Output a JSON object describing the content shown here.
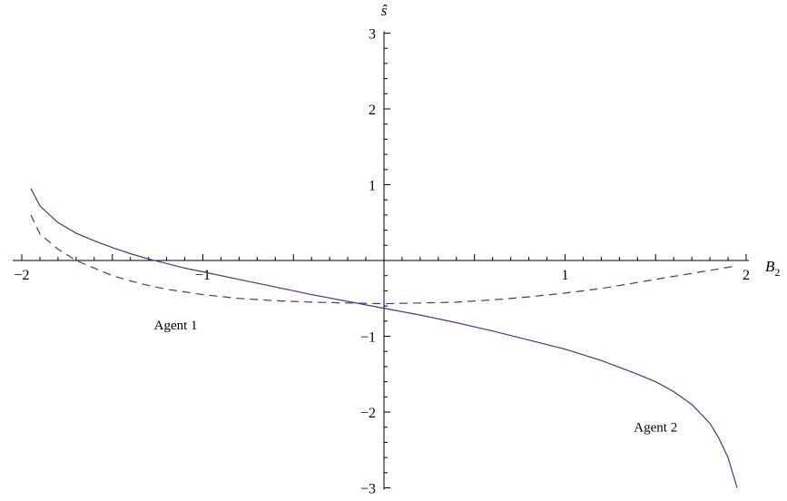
{
  "chart_data": {
    "type": "line",
    "xlabel": "B",
    "xlabel_sub": "2",
    "ylabel": "ŝ",
    "xlim": [
      -2,
      2
    ],
    "ylim": [
      -3,
      3
    ],
    "x_ticks": [
      {
        "value": -2,
        "label": "−2"
      },
      {
        "value": -1,
        "label": "−1"
      },
      {
        "value": 1,
        "label": "1"
      },
      {
        "value": 2,
        "label": "2"
      }
    ],
    "y_ticks": [
      {
        "value": 3,
        "label": "3"
      },
      {
        "value": 2,
        "label": "2"
      },
      {
        "value": 1,
        "label": "1"
      },
      {
        "value": -1,
        "label": "−1"
      },
      {
        "value": -2,
        "label": "−2"
      },
      {
        "value": -3,
        "label": "−3"
      }
    ],
    "grid": false,
    "series": [
      {
        "style": "solid",
        "color": "#3b3b8f",
        "points": [
          [
            -1.95,
            0.95
          ],
          [
            -1.9,
            0.72
          ],
          [
            -1.8,
            0.5
          ],
          [
            -1.7,
            0.36
          ],
          [
            -1.6,
            0.26
          ],
          [
            -1.5,
            0.17
          ],
          [
            -1.4,
            0.09
          ],
          [
            -1.3,
            0.02
          ],
          [
            -1.2,
            -0.04
          ],
          [
            -1.1,
            -0.1
          ],
          [
            -1.0,
            -0.15
          ],
          [
            -0.8,
            -0.25
          ],
          [
            -0.6,
            -0.35
          ],
          [
            -0.4,
            -0.45
          ],
          [
            -0.2,
            -0.54
          ],
          [
            0.0,
            -0.63
          ],
          [
            0.2,
            -0.72
          ],
          [
            0.4,
            -0.82
          ],
          [
            0.6,
            -0.93
          ],
          [
            0.8,
            -1.05
          ],
          [
            1.0,
            -1.17
          ],
          [
            1.2,
            -1.32
          ],
          [
            1.4,
            -1.5
          ],
          [
            1.5,
            -1.6
          ],
          [
            1.6,
            -1.73
          ],
          [
            1.7,
            -1.9
          ],
          [
            1.8,
            -2.15
          ],
          [
            1.85,
            -2.35
          ],
          [
            1.9,
            -2.6
          ],
          [
            1.95,
            -3.0
          ]
        ]
      },
      {
        "style": "dashed",
        "color": "#3b3b8f",
        "points": [
          [
            -1.95,
            0.6
          ],
          [
            -1.9,
            0.35
          ],
          [
            -1.8,
            0.15
          ],
          [
            -1.7,
            0.0
          ],
          [
            -1.6,
            -0.1
          ],
          [
            -1.5,
            -0.2
          ],
          [
            -1.4,
            -0.27
          ],
          [
            -1.3,
            -0.33
          ],
          [
            -1.2,
            -0.38
          ],
          [
            -1.0,
            -0.45
          ],
          [
            -0.8,
            -0.5
          ],
          [
            -0.6,
            -0.53
          ],
          [
            -0.4,
            -0.55
          ],
          [
            -0.2,
            -0.56
          ],
          [
            0.0,
            -0.57
          ],
          [
            0.2,
            -0.56
          ],
          [
            0.4,
            -0.55
          ],
          [
            0.6,
            -0.52
          ],
          [
            0.8,
            -0.48
          ],
          [
            1.0,
            -0.43
          ],
          [
            1.2,
            -0.37
          ],
          [
            1.4,
            -0.29
          ],
          [
            1.6,
            -0.21
          ],
          [
            1.8,
            -0.13
          ],
          [
            1.95,
            -0.07
          ]
        ]
      }
    ],
    "annotations": [
      {
        "text": "Agent 1",
        "x": -1.15,
        "y": -0.85
      },
      {
        "text": "Agent 2",
        "x": 1.5,
        "y": -2.2
      }
    ]
  }
}
